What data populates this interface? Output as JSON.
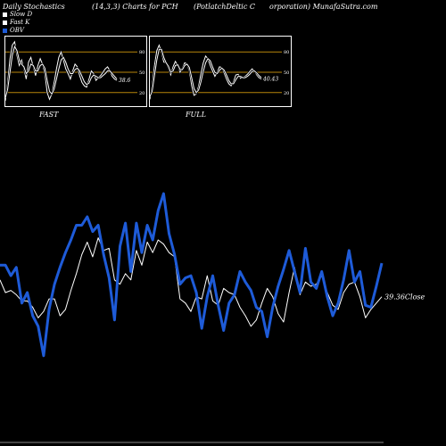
{
  "header": {
    "left": "Daily Stochastics",
    "middle": "(14,3,3) Charts for PCH",
    "right": "(PotlatchDeltic C",
    "site": "orporation) MunafaSutra.com"
  },
  "legend": [
    {
      "label": "Slow  D",
      "color": "#ffffff"
    },
    {
      "label": "Fast K",
      "color": "#ffffff"
    },
    {
      "label": "OBV",
      "color": "#1e5bd8"
    }
  ],
  "colors": {
    "obv": "#1e5bd8",
    "price": "#ffffff",
    "band": "#b8860b"
  },
  "chart_data": [
    {
      "type": "line",
      "title": "FAST",
      "yticks": [
        20,
        50,
        80
      ],
      "ylim": [
        0,
        100
      ],
      "value_label": "38.6",
      "series": [
        {
          "values": [
            8,
            35,
            70,
            90,
            95,
            75,
            60,
            68,
            55,
            40,
            65,
            72,
            58,
            45,
            60,
            70,
            62,
            48,
            20,
            10,
            18,
            35,
            55,
            72,
            80,
            68,
            55,
            48,
            40,
            52,
            62,
            58,
            45,
            35,
            30,
            28,
            40,
            52,
            48,
            38,
            42,
            45,
            50,
            55,
            58,
            52,
            44,
            40,
            38
          ]
        },
        {
          "values": [
            12,
            25,
            50,
            75,
            88,
            82,
            68,
            62,
            58,
            48,
            52,
            62,
            60,
            52,
            52,
            60,
            62,
            56,
            38,
            22,
            18,
            25,
            40,
            55,
            68,
            72,
            65,
            55,
            48,
            48,
            54,
            56,
            52,
            44,
            36,
            32,
            34,
            42,
            46,
            44,
            42,
            42,
            45,
            48,
            52,
            52,
            48,
            44,
            40
          ]
        }
      ]
    },
    {
      "type": "line",
      "title": "FULL",
      "yticks": [
        20,
        50,
        80
      ],
      "ylim": [
        0,
        100
      ],
      "value_label": "40.43",
      "series": [
        {
          "values": [
            10,
            30,
            60,
            82,
            90,
            80,
            65,
            64,
            56,
            46,
            58,
            66,
            60,
            50,
            56,
            64,
            62,
            52,
            30,
            16,
            18,
            30,
            48,
            64,
            74,
            70,
            60,
            52,
            44,
            50,
            58,
            57,
            49,
            40,
            33,
            30,
            36,
            46,
            47,
            41,
            42,
            44,
            47,
            51,
            55,
            52,
            46,
            42,
            40
          ]
        },
        {
          "values": [
            14,
            22,
            45,
            68,
            84,
            84,
            72,
            64,
            59,
            50,
            52,
            60,
            61,
            54,
            54,
            60,
            62,
            57,
            42,
            26,
            20,
            24,
            36,
            51,
            64,
            70,
            67,
            58,
            50,
            48,
            53,
            56,
            53,
            46,
            38,
            33,
            33,
            39,
            44,
            44,
            42,
            42,
            44,
            47,
            51,
            52,
            49,
            45,
            42
          ]
        }
      ]
    },
    {
      "type": "line",
      "value_label": "39.36",
      "value_suffix": "Close",
      "ylim": [
        0,
        100
      ],
      "series": [
        {
          "values": [
            63,
            63,
            58,
            62,
            45,
            50,
            39,
            34,
            20,
            42,
            54,
            62,
            69,
            75,
            82,
            82,
            86,
            79,
            82,
            68,
            57,
            37,
            72,
            83,
            60,
            83,
            69,
            82,
            75,
            89,
            97,
            78,
            68,
            54,
            57,
            58,
            50,
            33,
            48,
            58,
            44,
            32,
            45,
            49,
            60,
            55,
            51,
            43,
            41,
            29,
            43,
            53,
            61,
            70,
            60,
            50,
            71,
            55,
            52,
            60,
            48,
            39,
            45,
            56,
            70,
            55,
            60,
            44,
            43,
            53,
            64
          ]
        },
        {
          "values": [
            56,
            50,
            51,
            49,
            46,
            46,
            43,
            38,
            41,
            47,
            47,
            39,
            42,
            51,
            59,
            68,
            74,
            67,
            76,
            70,
            71,
            56,
            54,
            59,
            56,
            70,
            63,
            74,
            69,
            75,
            73,
            69,
            67,
            47,
            45,
            41,
            48,
            47,
            58,
            46,
            44,
            52,
            50,
            49,
            43,
            39,
            34,
            37,
            45,
            52,
            48,
            40,
            36,
            50,
            62,
            49,
            55,
            53,
            54,
            58,
            50,
            44,
            42,
            50,
            54,
            55,
            48,
            38,
            42,
            45,
            48
          ]
        }
      ]
    }
  ]
}
